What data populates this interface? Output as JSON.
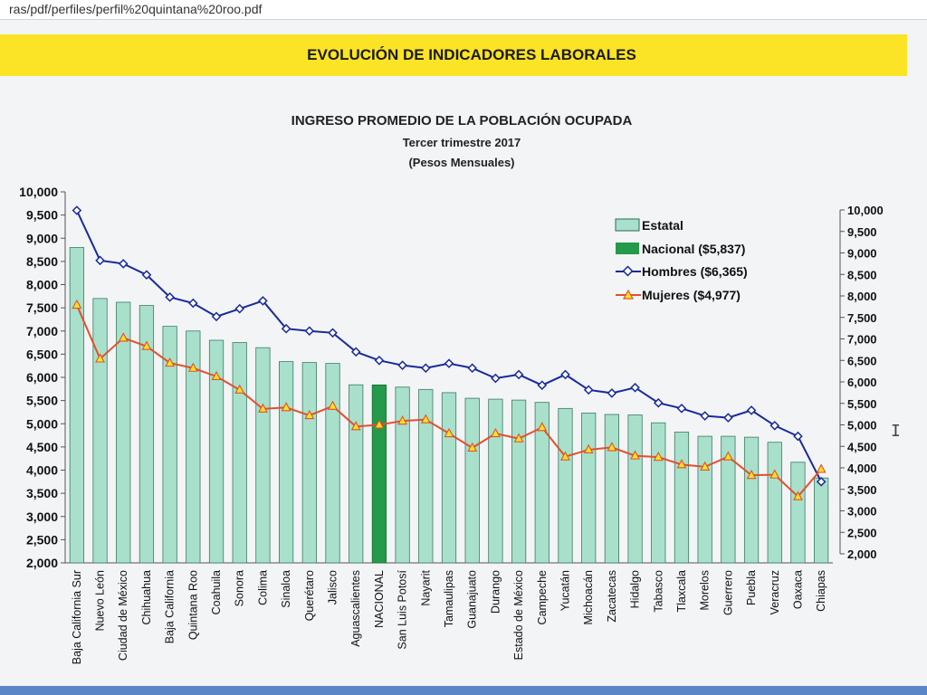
{
  "browser": {
    "url_fragment": "ras/pdf/perfiles/perfil%20quintana%20roo.pdf"
  },
  "banner": {
    "title": "EVOLUCIÓN DE INDICADORES LABORALES"
  },
  "chart_data": {
    "type": "bar",
    "title": "INGRESO PROMEDIO DE LA POBLACIÓN OCUPADA",
    "subtitle_1": "Tercer trimestre 2017",
    "subtitle_2": "(Pesos Mensuales)",
    "categories": [
      "Baja California Sur",
      "Nuevo León",
      "Ciudad de México",
      "Chihuahua",
      "Baja California",
      "Quintana Roo",
      "Coahuila",
      "Sonora",
      "Colima",
      "Sinaloa",
      "Querétaro",
      "Jalisco",
      "Aguascalientes",
      "NACIONAL",
      "San Luis Potosí",
      "Nayarit",
      "Tamaulipas",
      "Guanajuato",
      "Durango",
      "Estado de México",
      "Campeche",
      "Yucatán",
      "Michoacán",
      "Zacatecas",
      "Hidalgo",
      "Tabasco",
      "Tlaxcala",
      "Morelos",
      "Guerrero",
      "Puebla",
      "Veracruz",
      "Oaxaca",
      "Chiapas"
    ],
    "highlight_category": "NACIONAL",
    "ylim": [
      2000,
      10000
    ],
    "yticks": [
      "2,000",
      "2,500",
      "3,000",
      "3,500",
      "4,000",
      "4,500",
      "5,000",
      "5,500",
      "6,000",
      "6,500",
      "7,000",
      "7,500",
      "8,000",
      "8,500",
      "9,000",
      "9,500",
      "10,000"
    ],
    "y2ticks": [
      "2,000",
      "2,500",
      "3,000",
      "3,500",
      "4,000",
      "4,500",
      "5,000",
      "5,500",
      "6,000",
      "6,500",
      "7,000",
      "7,500",
      "8,000",
      "8,500",
      "9,000",
      "9,500",
      "10,000"
    ],
    "legend_position": "top-right",
    "series": [
      {
        "name": "Estatal",
        "kind": "bar",
        "color": "#a8e0cb",
        "values": [
          8800,
          7700,
          7620,
          7550,
          7100,
          7000,
          6800,
          6750,
          6640,
          6340,
          6320,
          6300,
          5840,
          5837,
          5790,
          5740,
          5670,
          5550,
          5530,
          5510,
          5460,
          5330,
          5230,
          5200,
          5190,
          5020,
          4820,
          4730,
          4730,
          4710,
          4600,
          4170,
          3830
        ]
      },
      {
        "name": "Nacional ($5,837)",
        "kind": "bar-highlight",
        "color": "#249a4a"
      },
      {
        "name": "Hombres ($6,365)",
        "kind": "line",
        "color": "#1a2a9a",
        "values": [
          9600,
          8520,
          8450,
          8210,
          7730,
          7600,
          7310,
          7480,
          7650,
          7050,
          7000,
          6960,
          6550,
          6365,
          6260,
          6200,
          6300,
          6200,
          5980,
          6060,
          5830,
          6060,
          5730,
          5660,
          5780,
          5450,
          5330,
          5170,
          5130,
          5290,
          4960,
          4730,
          3750
        ]
      },
      {
        "name": "Mujeres ($4,977)",
        "kind": "line",
        "color": "#e2502c",
        "values": [
          7560,
          6400,
          6850,
          6670,
          6310,
          6200,
          6020,
          5730,
          5320,
          5350,
          5180,
          5380,
          4940,
          4977,
          5060,
          5090,
          4790,
          4480,
          4790,
          4680,
          4920,
          4290,
          4440,
          4490,
          4310,
          4280,
          4120,
          4070,
          4290,
          3890,
          3900,
          3430,
          4020
        ]
      }
    ]
  }
}
